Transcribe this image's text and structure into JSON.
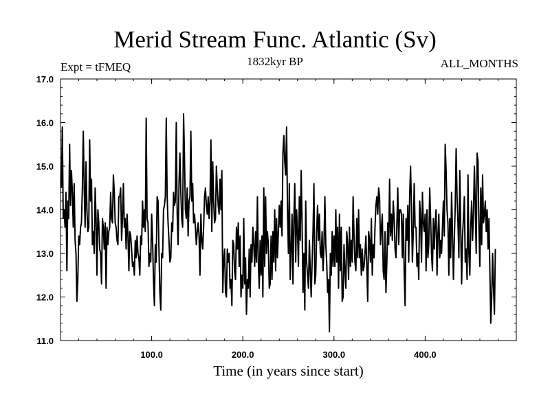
{
  "chart_data": {
    "type": "line",
    "title": "Merid Stream Func. Atlantic (Sv)",
    "subtitle": "1832kyr BP",
    "left_annotation": "Expt = tFMEQ",
    "right_annotation": "ALL_MONTHS",
    "xlabel": "Time (in years since start)",
    "ylabel": "",
    "xlim": [
      0,
      500
    ],
    "ylim": [
      11.0,
      17.0
    ],
    "xticks": [
      100,
      200,
      300,
      400
    ],
    "xtick_labels": [
      "100.0",
      "200.0",
      "300.0",
      "400.0"
    ],
    "yticks": [
      11,
      12,
      13,
      14,
      15,
      16,
      17
    ],
    "ytick_labels": [
      "11.0",
      "12.0",
      "13.0",
      "14.0",
      "15.0",
      "16.0",
      "17.0"
    ],
    "grid": false,
    "series": [
      {
        "name": "Merid Stream Func. Atlantic",
        "x_start": 1,
        "x_step": 1,
        "values": [
          14.5,
          15.9,
          13.8,
          14.0,
          13.6,
          14.4,
          12.6,
          14.2,
          13.8,
          15.5,
          14.1,
          14.9,
          14.4,
          13.6,
          14.6,
          13.3,
          13.0,
          11.9,
          12.4,
          13.4,
          13.2,
          13.6,
          13.7,
          14.5,
          15.8,
          14.5,
          13.6,
          15.1,
          14.0,
          13.5,
          13.6,
          15.6,
          14.2,
          14.7,
          13.2,
          13.5,
          13.0,
          14.5,
          13.8,
          12.5,
          14.0,
          13.7,
          13.1,
          13.0,
          12.3,
          13.8,
          13.6,
          13.1,
          13.7,
          12.2,
          13.6,
          13.2,
          13.5,
          13.6,
          14.4,
          13.8,
          13.7,
          14.8,
          14.4,
          13.7,
          13.6,
          13.3,
          13.2,
          14.3,
          14.3,
          14.5,
          13.3,
          13.8,
          14.6,
          13.6,
          13.8,
          13.1,
          13.9,
          13.4,
          12.6,
          13.5,
          13.4,
          13.1,
          12.7,
          12.8,
          12.5,
          13.3,
          12.9,
          13.4,
          13.0,
          12.9,
          12.5,
          13.4,
          13.2,
          14.2,
          13.6,
          14.0,
          13.5,
          16.1,
          13.8,
          13.7,
          12.7,
          13.0,
          12.8,
          13.9,
          13.3,
          12.4,
          11.8,
          13.2,
          12.8,
          14.3,
          14.2,
          13.1,
          12.1,
          11.7,
          13.0,
          12.9,
          14.0,
          14.1,
          14.3,
          16.1,
          14.3,
          13.7,
          13.3,
          12.8,
          12.9,
          13.7,
          13.5,
          14.4,
          14.1,
          14.2,
          16.0,
          13.9,
          13.2,
          14.6,
          15.3,
          14.4,
          13.8,
          13.6,
          16.2,
          15.2,
          14.0,
          13.8,
          14.5,
          13.4,
          14.2,
          14.3,
          15.8,
          14.2,
          14.6,
          13.7,
          13.9,
          13.6,
          13.2,
          13.5,
          13.7,
          13.4,
          12.5,
          13.9,
          13.3,
          13.1,
          13.6,
          14.3,
          14.5,
          14.1,
          13.9,
          14.3,
          13.8,
          14.2,
          15.6,
          13.5,
          15.1,
          14.2,
          13.7,
          13.8,
          15.0,
          14.5,
          14.1,
          13.9,
          14.7,
          14.0,
          14.9,
          12.1,
          12.8,
          13.1,
          12.1,
          12.0,
          13.1,
          12.8,
          13.0,
          12.2,
          12.4,
          11.8,
          13.3,
          13.2,
          12.6,
          12.4,
          13.6,
          13.1,
          13.7,
          12.7,
          13.4,
          12.0,
          12.5,
          12.2,
          13.8,
          12.3,
          12.9,
          11.6,
          12.4,
          12.2,
          13.1,
          12.0,
          13.2,
          12.8,
          13.6,
          13.2,
          12.7,
          13.5,
          12.8,
          14.3,
          12.8,
          12.2,
          13.3,
          12.5,
          13.4,
          12.0,
          14.5,
          12.7,
          14.3,
          13.0,
          13.5,
          13.2,
          12.2,
          12.3,
          13.4,
          12.4,
          13.5,
          12.8,
          14.0,
          12.6,
          13.8,
          12.9,
          13.5,
          14.1,
          13.6,
          14.2,
          13.4,
          15.3,
          15.7,
          15.1,
          14.8,
          15.9,
          14.0,
          13.0,
          14.6,
          12.4,
          13.1,
          13.9,
          12.3,
          13.8,
          14.6,
          12.8,
          14.0,
          13.5,
          12.7,
          14.3,
          13.3,
          14.9,
          13.7,
          12.1,
          13.0,
          11.7,
          14.2,
          12.8,
          12.5,
          12.2,
          13.3,
          12.6,
          12.0,
          12.8,
          13.5,
          14.6,
          12.3,
          12.5,
          13.5,
          14.1,
          13.3,
          13.9,
          13.0,
          12.9,
          13.5,
          12.6,
          13.2,
          14.3,
          13.2,
          12.8,
          12.1,
          12.4,
          11.2,
          13.0,
          12.5,
          13.5,
          12.7,
          13.4,
          12.7,
          14.0,
          12.8,
          13.6,
          12.2,
          13.9,
          12.6,
          13.6,
          11.9,
          12.0,
          13.2,
          12.6,
          12.2,
          13.5,
          13.2,
          12.4,
          13.6,
          12.7,
          13.3,
          12.8,
          14.3,
          13.4,
          12.8,
          12.6,
          13.8,
          12.9,
          14.0,
          12.9,
          13.2,
          12.5,
          13.1,
          12.6,
          12.7,
          13.0,
          13.4,
          12.7,
          11.9,
          13.5,
          13.3,
          12.8,
          13.8,
          12.5,
          13.2,
          12.9,
          13.6,
          14.1,
          14.3,
          13.9,
          14.5,
          14.3,
          13.2,
          13.6,
          13.9,
          12.6,
          12.4,
          13.5,
          12.1,
          12.8,
          13.7,
          13.2,
          14.7,
          13.4,
          13.9,
          13.3,
          14.2,
          13.8,
          13.1,
          12.9,
          13.7,
          14.5,
          13.2,
          14.0,
          14.0,
          13.9,
          12.9,
          13.9,
          12.6,
          11.8,
          13.8,
          13.3,
          14.1,
          12.8,
          14.3,
          15.0,
          14.1,
          12.8,
          13.5,
          14.6,
          13.6,
          13.6,
          12.7,
          13.0,
          12.4,
          14.2,
          13.8,
          12.8,
          14.4,
          13.7,
          13.5,
          13.9,
          12.6,
          14.0,
          12.9,
          13.2,
          14.5,
          13.8,
          13.0,
          12.6,
          13.8,
          13.1,
          13.7,
          14.0,
          12.5,
          13.4,
          13.9,
          12.9,
          13.3,
          13.0,
          13.6,
          14.2,
          13.4,
          15.5,
          14.9,
          14.0,
          13.7,
          12.5,
          13.8,
          12.9,
          14.4,
          13.5,
          12.4,
          13.3,
          14.1,
          15.4,
          14.3,
          13.7,
          12.9,
          14.9,
          13.6,
          12.3,
          13.4,
          13.8,
          14.3,
          12.8,
          13.1,
          12.4,
          14.8,
          13.0,
          12.5,
          13.6,
          14.2,
          13.3,
          13.9,
          15.0,
          14.1,
          13.0,
          15.3,
          15.1,
          13.6,
          12.7,
          14.5,
          13.2,
          14.8,
          13.7,
          13.9,
          14.2,
          13.5,
          14.0,
          13.1,
          13.8,
          12.6,
          11.4,
          12.0,
          13.0,
          12.2,
          11.6,
          13.1
        ]
      }
    ]
  }
}
